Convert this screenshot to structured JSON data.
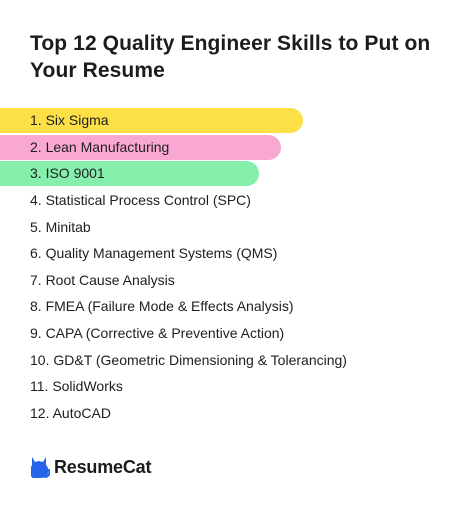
{
  "title": "Top 12 Quality Engineer Skills to Put on Your Resume",
  "skills": [
    {
      "label": "1. Six Sigma",
      "highlight": "#fde047"
    },
    {
      "label": "2. Lean Manufacturing",
      "highlight": "#f9a8d4"
    },
    {
      "label": "3. ISO 9001",
      "highlight": "#86efac"
    },
    {
      "label": "4. Statistical Process Control (SPC)",
      "highlight": null
    },
    {
      "label": "5. Minitab",
      "highlight": null
    },
    {
      "label": "6. Quality Management Systems (QMS)",
      "highlight": null
    },
    {
      "label": "7. Root Cause Analysis",
      "highlight": null
    },
    {
      "label": "8. FMEA (Failure Mode & Effects Analysis)",
      "highlight": null
    },
    {
      "label": "9. CAPA (Corrective & Preventive Action)",
      "highlight": null
    },
    {
      "label": "10. GD&T (Geometric Dimensioning & Tolerancing)",
      "highlight": null
    },
    {
      "label": "11. SolidWorks",
      "highlight": null
    },
    {
      "label": "12. AutoCAD",
      "highlight": null
    }
  ],
  "brand": {
    "name": "ResumeCat",
    "logo_icon": "cat-icon",
    "logo_color": "#2563eb"
  }
}
